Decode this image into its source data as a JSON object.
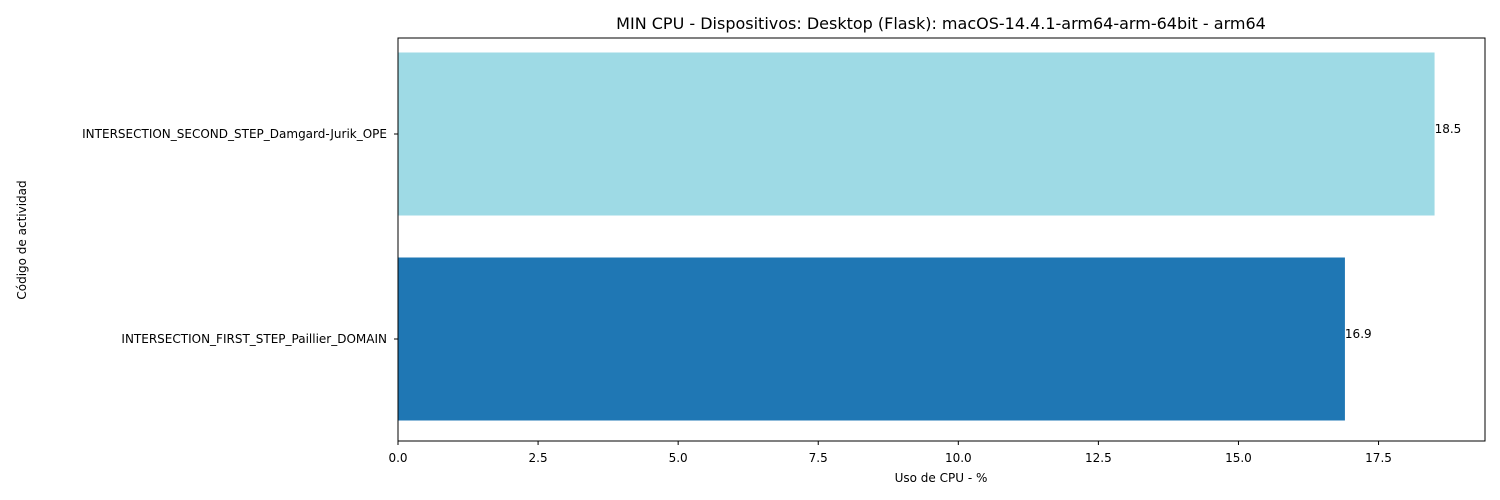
{
  "chart_data": {
    "type": "bar",
    "orientation": "horizontal",
    "title": "MIN CPU - Dispositivos: Desktop (Flask): macOS-14.4.1-arm64-arm-64bit - arm64",
    "xlabel": "Uso de CPU - %",
    "ylabel": "Código de actividad",
    "categories": [
      "INTERSECTION_FIRST_STEP_Paillier_DOMAIN",
      "INTERSECTION_SECOND_STEP_Damgard-Jurik_OPE"
    ],
    "values": [
      16.9,
      18.5
    ],
    "value_labels": [
      "16.9",
      "18.5"
    ],
    "colors": [
      "#1f77b4",
      "#9edae5"
    ],
    "xlim": [
      0,
      19.4
    ],
    "xticks": [
      0,
      2.5,
      5,
      7.5,
      10,
      12.5,
      15,
      17.5
    ],
    "xtick_labels": [
      "0.0",
      "2.5",
      "5.0",
      "7.5",
      "10.0",
      "12.5",
      "15.0",
      "17.5"
    ],
    "grid": false,
    "legend": "none"
  }
}
